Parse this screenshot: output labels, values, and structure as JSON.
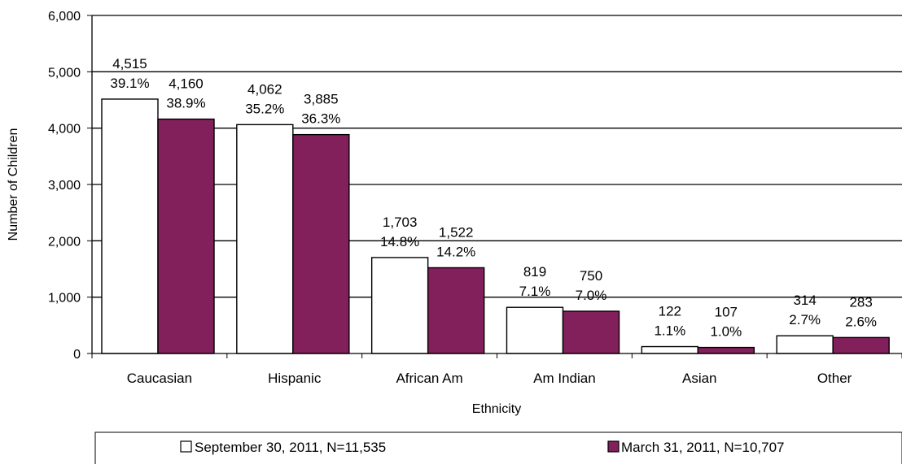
{
  "chart_data": {
    "type": "bar",
    "xlabel": "Ethnicity",
    "ylabel": "Number of Children",
    "ylim": [
      0,
      6000
    ],
    "yticks": [
      0,
      1000,
      2000,
      3000,
      4000,
      5000,
      6000
    ],
    "ytick_labels": [
      "0",
      "1,000",
      "2,000",
      "3,000",
      "4,000",
      "5,000",
      "6,000"
    ],
    "grid": true,
    "legend_position": "bottom",
    "categories": [
      "Caucasian",
      "Hispanic",
      "African Am",
      "Am Indian",
      "Asian",
      "Other"
    ],
    "series": [
      {
        "name": "September 30, 2011, N=11,535",
        "color": "#ffffff",
        "values": [
          4515,
          4062,
          1703,
          819,
          122,
          314
        ],
        "value_labels": [
          "4,515",
          "4,062",
          "1,703",
          "819",
          "122",
          "314"
        ],
        "percent_labels": [
          "39.1%",
          "35.2%",
          "14.8%",
          "7.1%",
          "1.1%",
          "2.7%"
        ]
      },
      {
        "name": "March 31, 2011, N=10,707",
        "color": "#82205c",
        "values": [
          4160,
          3885,
          1522,
          750,
          107,
          283
        ],
        "value_labels": [
          "4,160",
          "3,885",
          "1,522",
          "750",
          "107",
          "283"
        ],
        "percent_labels": [
          "38.9%",
          "36.3%",
          "14.2%",
          "7.0%",
          "1.0%",
          "2.6%"
        ]
      }
    ]
  }
}
